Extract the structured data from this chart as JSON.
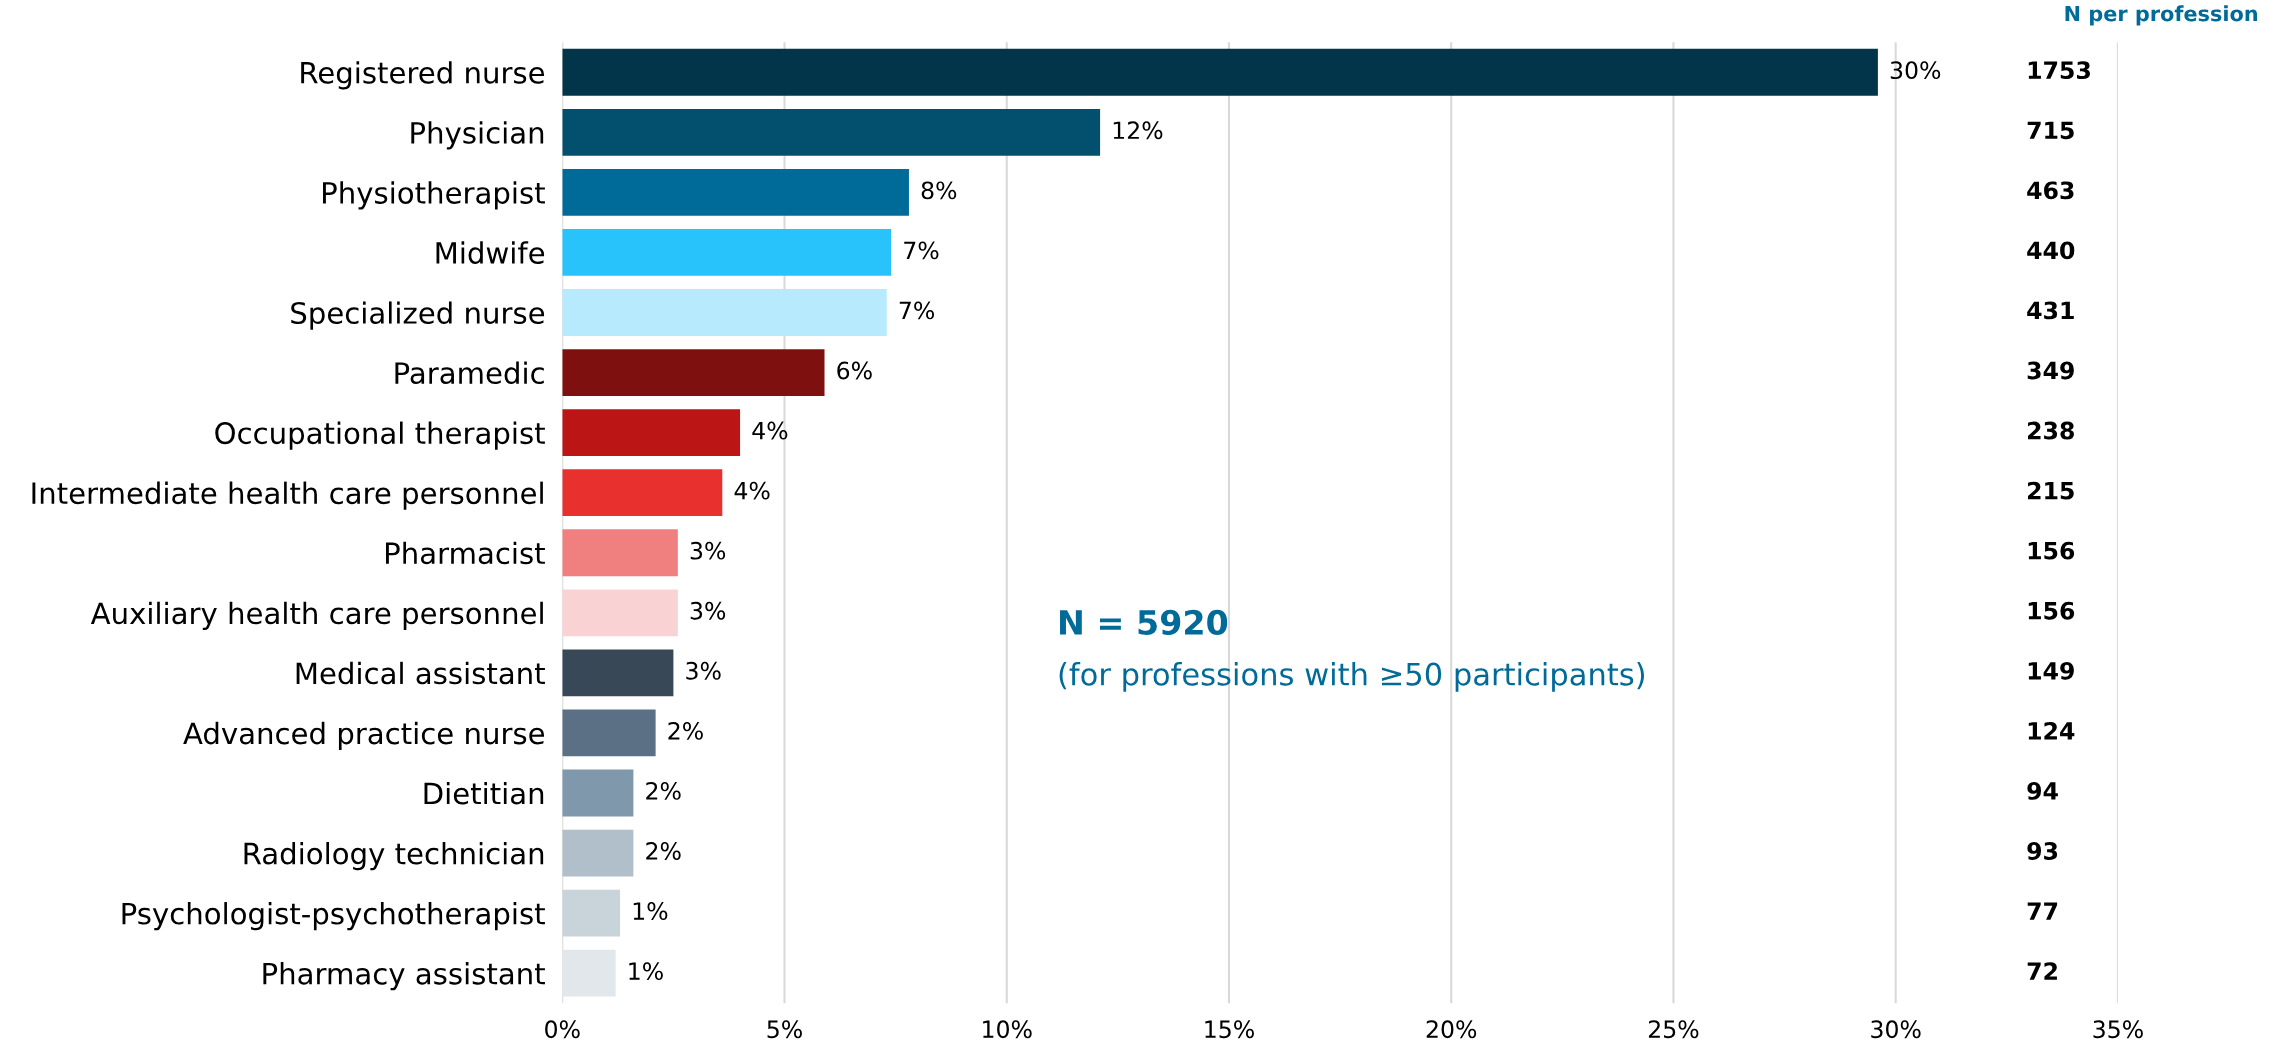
{
  "chart_data": {
    "type": "bar",
    "orientation": "horizontal",
    "categories": [
      "Registered nurse",
      "Physician",
      "Physiotherapist",
      "Midwife",
      "Specialized nurse",
      "Paramedic",
      "Occupational therapist",
      "Intermediate health care personnel",
      "Pharmacist",
      "Auxiliary health care personnel",
      "Medical assistant",
      "Advanced practice nurse",
      "Dietitian",
      "Radiology technician",
      "Psychologist-psychotherapist",
      "Pharmacy assistant"
    ],
    "values": [
      29.6,
      12.1,
      7.8,
      7.4,
      7.3,
      5.9,
      4.0,
      3.6,
      2.6,
      2.6,
      2.5,
      2.1,
      1.6,
      1.6,
      1.3,
      1.2
    ],
    "colors": [
      "#02344a",
      "#02506e",
      "#006b99",
      "#29c3fb",
      "#b8eafd",
      "#7f1010",
      "#bb1515",
      "#e8302e",
      "#f08080",
      "#f9d3d3",
      "#394856",
      "#5b7085",
      "#7f98ab",
      "#b1bfca",
      "#c8d3da",
      "#e2e7eb"
    ],
    "value_labels": [
      "30%",
      "12%",
      "8%",
      "7%",
      "7%",
      "6%",
      "4%",
      "4%",
      "3%",
      "3%",
      "3%",
      "2%",
      "2%",
      "2%",
      "1%",
      "1%"
    ],
    "xlim": [
      0,
      35
    ],
    "xticks": [
      {
        "value": 0,
        "label": "0%"
      },
      {
        "value": 5,
        "label": "5%"
      },
      {
        "value": 10,
        "label": "10%"
      },
      {
        "value": 15,
        "label": "15%"
      },
      {
        "value": 20,
        "label": "20%"
      },
      {
        "value": 25,
        "label": "25%"
      },
      {
        "value": 30,
        "label": "30%"
      },
      {
        "value": 35,
        "label": "35%"
      }
    ],
    "grid": "x",
    "annotations": [
      "N per profession",
      "N = 5920",
      "(for professions with ≥50 participants)",
      "1753",
      "715",
      "463",
      "440",
      "431",
      "349",
      "238",
      "215",
      "156",
      "156",
      "149",
      "124",
      "94",
      "93",
      "77",
      "72"
    ]
  }
}
